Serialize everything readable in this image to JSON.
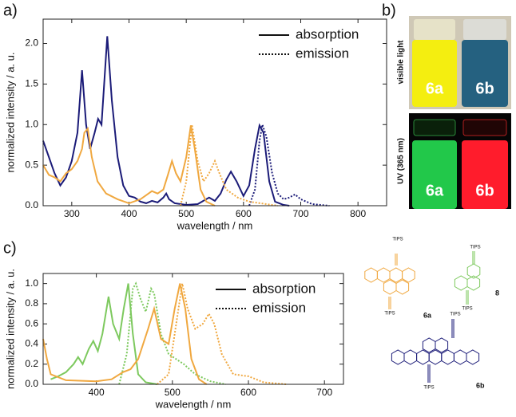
{
  "chart_data": [
    {
      "type": "line",
      "panel_label": "a)",
      "x_label": "wavelength / nm",
      "y_label": "normalized intensity / a. u.",
      "xlim": [
        250,
        850
      ],
      "xticks": [
        300,
        400,
        500,
        600,
        700,
        800
      ],
      "ylim": [
        0,
        2.3
      ],
      "yticks": [
        {
          "value": 0,
          "label": "0.0"
        },
        {
          "value": 0.5,
          "label": "0.5"
        },
        {
          "value": 1,
          "label": "1.0"
        },
        {
          "value": 1.5,
          "label": "1.5"
        },
        {
          "value": 2,
          "label": "2.0"
        }
      ],
      "legend": [
        {
          "label": "absorption",
          "dash": "solid"
        },
        {
          "label": "emission",
          "dash": "dotted"
        }
      ],
      "legend_position": "top right",
      "series": [
        {
          "color": "#1b1b78",
          "dash": "solid",
          "x": [
            250,
            260,
            270,
            280,
            290,
            300,
            310,
            318,
            325,
            332,
            340,
            346,
            352,
            362,
            370,
            380,
            390,
            400,
            410,
            420,
            430,
            440,
            450,
            460,
            465,
            470,
            480,
            500,
            520,
            540,
            550,
            560,
            570,
            578,
            588,
            600,
            610,
            620,
            628,
            635,
            645,
            655,
            670,
            680
          ],
          "values": [
            0.8,
            0.6,
            0.4,
            0.25,
            0.35,
            0.55,
            0.9,
            1.67,
            1.0,
            0.7,
            0.9,
            1.07,
            1.0,
            2.09,
            1.3,
            0.6,
            0.25,
            0.12,
            0.1,
            0.05,
            0.03,
            0.06,
            0.04,
            0.1,
            0.15,
            0.08,
            0.03,
            0.01,
            0.02,
            0.1,
            0.06,
            0.15,
            0.32,
            0.42,
            0.3,
            0.12,
            0.25,
            0.7,
            0.99,
            0.9,
            0.3,
            0.05,
            0.01,
            0
          ]
        },
        {
          "color": "#1b1b78",
          "dash": "dotted",
          "x": [
            610,
            620,
            628,
            633,
            640,
            650,
            660,
            670,
            680,
            690,
            700,
            720,
            750
          ],
          "values": [
            0,
            0.2,
            0.8,
            1.0,
            0.85,
            0.4,
            0.15,
            0.08,
            0.1,
            0.14,
            0.08,
            0.02,
            0
          ]
        },
        {
          "color": "#f0a840",
          "dash": "solid",
          "x": [
            250,
            260,
            270,
            280,
            290,
            300,
            310,
            318,
            322,
            328,
            335,
            345,
            360,
            380,
            400,
            420,
            430,
            440,
            450,
            460,
            468,
            475,
            482,
            490,
            500,
            508,
            515,
            525,
            535,
            550
          ],
          "values": [
            0.5,
            0.38,
            0.35,
            0.3,
            0.4,
            0.45,
            0.55,
            0.7,
            0.9,
            0.95,
            0.6,
            0.3,
            0.15,
            0.08,
            0.03,
            0.08,
            0.13,
            0.18,
            0.15,
            0.2,
            0.38,
            0.55,
            0.4,
            0.3,
            0.6,
            0.99,
            0.7,
            0.2,
            0.05,
            0
          ]
        },
        {
          "color": "#f0a840",
          "dash": "dotted",
          "x": [
            490,
            500,
            510,
            520,
            530,
            540,
            550,
            558,
            570,
            590,
            610,
            640,
            660
          ],
          "values": [
            0,
            0.3,
            1.0,
            0.55,
            0.3,
            0.4,
            0.55,
            0.4,
            0.2,
            0.1,
            0.05,
            0.02,
            0
          ]
        }
      ]
    },
    {
      "type": "line",
      "panel_label": "c)",
      "x_label": "wavelength / nm",
      "y_label": "normalized intensity / a. u.",
      "xlim": [
        330,
        725
      ],
      "xticks": [
        400,
        500,
        600,
        700
      ],
      "ylim": [
        0,
        1.1
      ],
      "yticks": [
        {
          "value": 0,
          "label": "0.0"
        },
        {
          "value": 0.2,
          "label": "0.2"
        },
        {
          "value": 0.4,
          "label": "0.4"
        },
        {
          "value": 0.6,
          "label": "0.6"
        },
        {
          "value": 0.8,
          "label": "0.8"
        },
        {
          "value": 1,
          "label": "1.0"
        }
      ],
      "legend": [
        {
          "label": "absorption",
          "dash": "solid"
        },
        {
          "label": "emission",
          "dash": "dotted"
        }
      ],
      "legend_position": "top right",
      "series": [
        {
          "color": "#7dc95e",
          "dash": "solid",
          "x": [
            340,
            350,
            360,
            370,
            376,
            382,
            390,
            396,
            402,
            408,
            416,
            422,
            430,
            436,
            442,
            448,
            455,
            465,
            480
          ],
          "values": [
            0.05,
            0.08,
            0.12,
            0.2,
            0.27,
            0.2,
            0.35,
            0.43,
            0.33,
            0.5,
            0.87,
            0.6,
            0.45,
            0.75,
            1.0,
            0.5,
            0.1,
            0.02,
            0
          ]
        },
        {
          "color": "#7dc95e",
          "dash": "dotted",
          "x": [
            430,
            440,
            448,
            452,
            458,
            465,
            472,
            476,
            485,
            495,
            505,
            515,
            530,
            550,
            570
          ],
          "values": [
            0,
            0.3,
            0.95,
            1.0,
            0.85,
            0.72,
            0.95,
            0.9,
            0.5,
            0.3,
            0.25,
            0.2,
            0.1,
            0.03,
            0
          ]
        },
        {
          "color": "#f0a840",
          "dash": "solid",
          "x": [
            330,
            335,
            340,
            360,
            400,
            420,
            435,
            445,
            455,
            468,
            476,
            485,
            495,
            503,
            510,
            517,
            525,
            535,
            545
          ],
          "values": [
            0.45,
            0.25,
            0.1,
            0.04,
            0.03,
            0.05,
            0.12,
            0.15,
            0.25,
            0.55,
            0.75,
            0.45,
            0.4,
            0.75,
            1.0,
            0.75,
            0.25,
            0.05,
            0
          ]
        },
        {
          "color": "#f0a840",
          "dash": "dotted",
          "x": [
            480,
            495,
            505,
            513,
            520,
            530,
            540,
            548,
            555,
            565,
            580,
            600,
            620,
            650
          ],
          "values": [
            0,
            0.1,
            0.6,
            1.0,
            0.75,
            0.55,
            0.6,
            0.7,
            0.6,
            0.3,
            0.1,
            0.08,
            0.02,
            0
          ]
        }
      ]
    }
  ],
  "photos": {
    "panel_label": "b)",
    "rows": [
      {
        "caption": "visible light",
        "samples": [
          "6a",
          "6b"
        ]
      },
      {
        "caption": "UV (365 nm)",
        "samples": [
          "6a",
          "6b"
        ]
      }
    ]
  },
  "structures": {
    "compounds": [
      {
        "label": "6a",
        "substituents": [
          "TIPS",
          "TIPS"
        ]
      },
      {
        "label": "8",
        "substituents": [
          "TIPS",
          "TIPS"
        ]
      },
      {
        "label": "6b",
        "substituents": [
          "TIPS",
          "TIPS"
        ]
      }
    ]
  }
}
